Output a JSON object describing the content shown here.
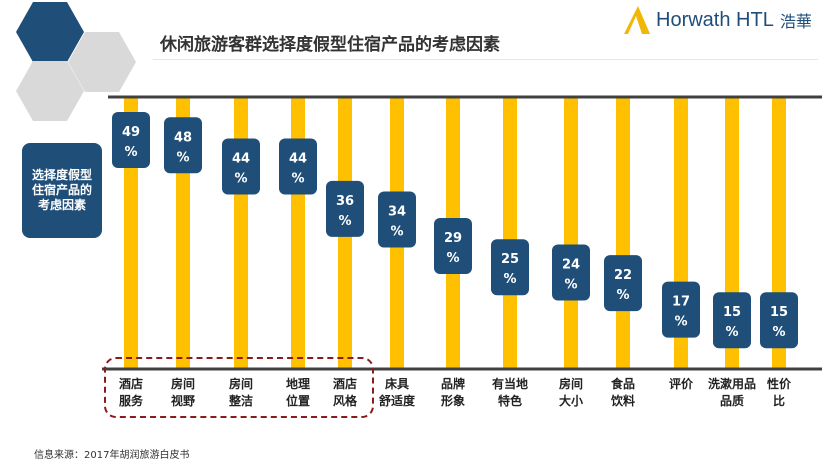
{
  "title": "休闲旅游客群选择度假型住宿产品的考虑因素",
  "logo": {
    "brand": "Horwath HTL",
    "cn": "浩華"
  },
  "side_label": "选择度假型住宿产品的考虑因素",
  "source": "信息来源：2017年胡润旅游白皮书",
  "colors": {
    "bar": "#FFC000",
    "bubble": "#1F4E79",
    "axis": "#404040",
    "highlight": "#8B1A1A"
  },
  "chart_data": {
    "type": "bar",
    "title": "休闲旅游客群选择度假型住宿产品的考虑因素",
    "categories": [
      "酒店\n服务",
      "房间\n视野",
      "房间\n整洁",
      "地理\n位置",
      "酒店\n风格",
      "床具\n舒适度",
      "品牌\n形象",
      "有当地\n特色",
      "房间\n大小",
      "食品\n饮料",
      "评价",
      "洗漱用品\n品质",
      "性价\n比"
    ],
    "values": [
      49,
      48,
      44,
      44,
      36,
      34,
      29,
      25,
      24,
      22,
      17,
      15,
      15
    ],
    "unit": "%",
    "highlighted": [
      0,
      1,
      2,
      3,
      4
    ]
  }
}
